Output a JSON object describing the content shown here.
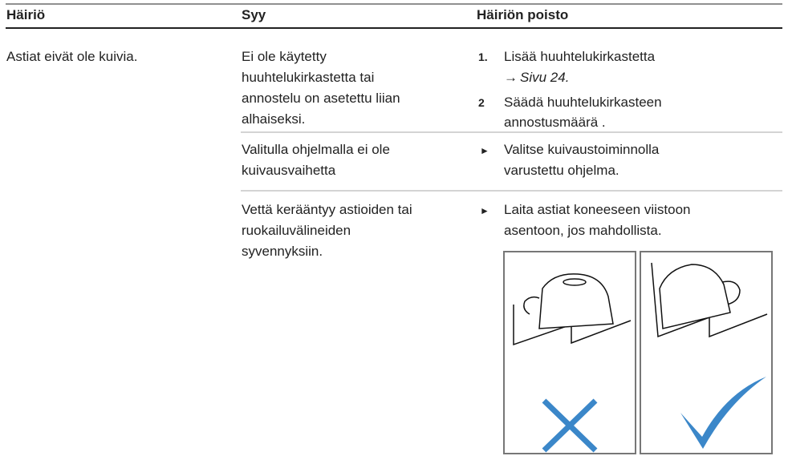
{
  "table": {
    "headers": [
      "Häiriö",
      "Syy",
      "Häiriön poisto"
    ],
    "problem": "Astiat eivät ole kuivia.",
    "rows": [
      {
        "cause": [
          "Ei ole käytetty",
          "huuhtelukirkastetta tai",
          "annostelu on asetettu liian",
          "alhaiseksi."
        ],
        "steps": [
          {
            "marker": "1.",
            "lines": [
              "Lisää huuhtelukirkastetta"
            ],
            "arrow": "→",
            "ref": "Sivu 24."
          },
          {
            "marker": "2",
            "lines": [
              "Säädä huuhtelukirkasteen",
              "annostusmäärä ."
            ]
          }
        ]
      },
      {
        "cause": [
          "Valitulla ohjelmalla ei ole",
          "kuivausvaihetta"
        ],
        "bullet": "►",
        "remedy": [
          "Valitse kuivaustoiminnolla",
          "varustettu ohjelma."
        ]
      },
      {
        "cause": [
          "Vettä kerääntyy astioiden tai",
          "ruokailuvälineiden",
          "syvennyksiin."
        ],
        "bullet": "►",
        "remedy": [
          "Laita astiat koneeseen viistoon",
          "asentoon, jos mahdollista."
        ]
      }
    ]
  }
}
